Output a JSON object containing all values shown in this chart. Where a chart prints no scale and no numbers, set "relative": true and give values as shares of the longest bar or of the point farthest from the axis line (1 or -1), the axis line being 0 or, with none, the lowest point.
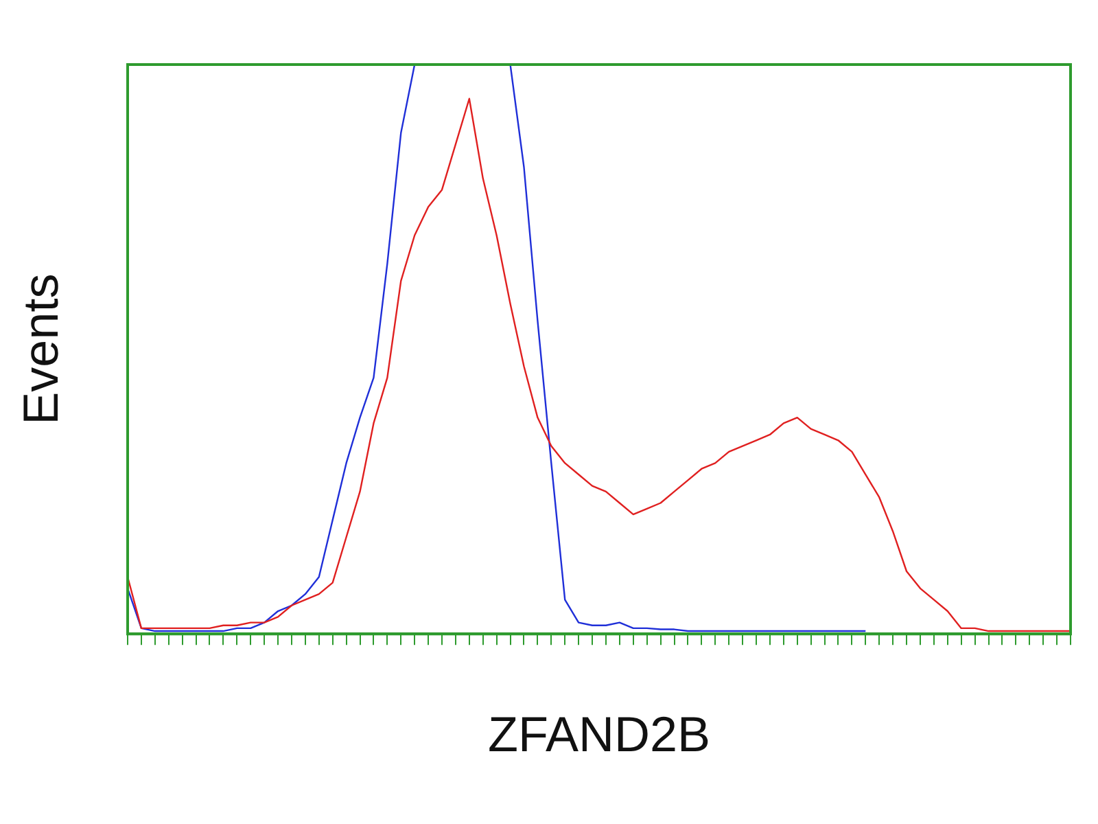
{
  "chart_data": {
    "type": "line",
    "xlabel": "ZFAND2B",
    "ylabel": "Events",
    "relative": true,
    "legend": false,
    "marker": "none",
    "categories": [
      null,
      null,
      null,
      null,
      null,
      null,
      null,
      null,
      null,
      null,
      null,
      null,
      null,
      null,
      null,
      null,
      null,
      null,
      null,
      null,
      null,
      null,
      null,
      null,
      null,
      null,
      null,
      null,
      null,
      null,
      null,
      null,
      null,
      null,
      null,
      null,
      null,
      null,
      null,
      null,
      null,
      null,
      null,
      null,
      null,
      null,
      null,
      null,
      null,
      null,
      null,
      null,
      null,
      null,
      null,
      null,
      null,
      null,
      null,
      null,
      null,
      null,
      null,
      null,
      null,
      null,
      null,
      null,
      null,
      null
    ],
    "series": [
      {
        "color": "#e02020",
        "values": [
          0.1,
          0.01,
          0.01,
          0.01,
          0.01,
          0.01,
          0.01,
          0.015,
          0.015,
          0.02,
          0.02,
          0.03,
          0.05,
          0.06,
          0.07,
          0.09,
          0.17,
          0.25,
          0.37,
          0.45,
          0.62,
          0.7,
          0.75,
          0.78,
          0.86,
          0.94,
          0.8,
          0.7,
          0.58,
          0.47,
          0.38,
          0.33,
          0.3,
          0.28,
          0.26,
          0.25,
          0.23,
          0.21,
          0.22,
          0.23,
          0.25,
          0.27,
          0.29,
          0.3,
          0.32,
          0.33,
          0.34,
          0.35,
          0.37,
          0.38,
          0.36,
          0.35,
          0.34,
          0.32,
          0.28,
          0.24,
          0.18,
          0.11,
          0.08,
          0.06,
          0.04,
          0.01,
          0.01,
          0.005,
          0.005,
          0.005,
          0.005,
          0.005,
          0.005,
          0.005
        ]
      },
      {
        "color": "#1f2fd8",
        "values": [
          0.08,
          0.01,
          0.005,
          0.005,
          0.005,
          0.005,
          0.005,
          0.005,
          0.01,
          0.01,
          0.02,
          0.04,
          0.05,
          0.07,
          0.1,
          0.2,
          0.3,
          0.38,
          0.45,
          0.65,
          0.88,
          1,
          null,
          null,
          null,
          null,
          null,
          null,
          1,
          0.82,
          0.55,
          0.3,
          0.06,
          0.02,
          0.015,
          0.015,
          0.02,
          0.01,
          0.01,
          0.008,
          0.008,
          0.005,
          0.005,
          0.005,
          0.005,
          0.005,
          0.005,
          0.005,
          0.005,
          0.005,
          0.005,
          0.005,
          0.005,
          0.005,
          0.005,
          null,
          null,
          null,
          null,
          null,
          null,
          null,
          null,
          null,
          null,
          null,
          null,
          null,
          null,
          null
        ]
      }
    ]
  }
}
